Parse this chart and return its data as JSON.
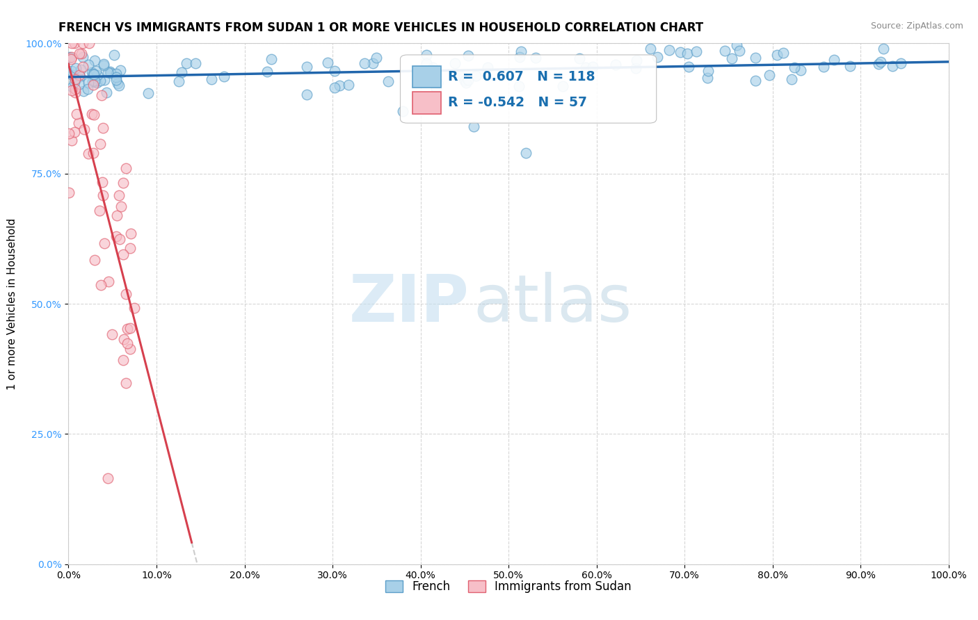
{
  "title": "FRENCH VS IMMIGRANTS FROM SUDAN 1 OR MORE VEHICLES IN HOUSEHOLD CORRELATION CHART",
  "source_text": "Source: ZipAtlas.com",
  "ylabel": "1 or more Vehicles in Household",
  "xlim": [
    0.0,
    1.0
  ],
  "ylim": [
    0.0,
    1.0
  ],
  "xtick_positions": [
    0.0,
    0.1,
    0.2,
    0.3,
    0.4,
    0.5,
    0.6,
    0.7,
    0.8,
    0.9,
    1.0
  ],
  "xtick_labels": [
    "0.0%",
    "10.0%",
    "20.0%",
    "30.0%",
    "40.0%",
    "50.0%",
    "60.0%",
    "70.0%",
    "80.0%",
    "90.0%",
    "100.0%"
  ],
  "ytick_positions": [
    0.0,
    0.25,
    0.5,
    0.75,
    1.0
  ],
  "ytick_labels": [
    "0.0%",
    "25.0%",
    "50.0%",
    "75.0%",
    "100.0%"
  ],
  "french_color": "#a8d0e8",
  "french_edge_color": "#5b9ec9",
  "sudan_color": "#f7bfc8",
  "sudan_edge_color": "#e06070",
  "french_R": 0.607,
  "french_N": 118,
  "sudan_R": -0.542,
  "sudan_N": 57,
  "french_line_color": "#2166ac",
  "sudan_line_color": "#d6404e",
  "watermark_zip": "ZIP",
  "watermark_atlas": "atlas",
  "legend_label_french": "French",
  "legend_label_sudan": "Immigrants from Sudan",
  "title_fontsize": 12,
  "axis_label_fontsize": 11,
  "tick_fontsize": 10,
  "marker_size": 110,
  "background_color": "#ffffff",
  "grid_color": "#cccccc"
}
